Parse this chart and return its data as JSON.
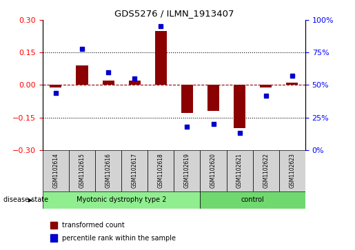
{
  "title": "GDS5276 / ILMN_1913407",
  "samples": [
    "GSM1102614",
    "GSM1102615",
    "GSM1102616",
    "GSM1102617",
    "GSM1102618",
    "GSM1102619",
    "GSM1102620",
    "GSM1102621",
    "GSM1102622",
    "GSM1102623"
  ],
  "transformed_count": [
    -0.01,
    0.09,
    0.02,
    0.02,
    0.25,
    -0.13,
    -0.12,
    -0.2,
    -0.01,
    0.01
  ],
  "percentile_rank": [
    44,
    78,
    60,
    55,
    95,
    18,
    20,
    13,
    42,
    57
  ],
  "group_info": [
    {
      "label": "Myotonic dystrophy type 2",
      "start": 0,
      "end": 5,
      "color": "#90EE90"
    },
    {
      "label": "control",
      "start": 6,
      "end": 9,
      "color": "#6FD96F"
    }
  ],
  "bar_color": "#8B0000",
  "dot_color": "#0000CD",
  "ylim_left": [
    -0.3,
    0.3
  ],
  "ylim_right": [
    0,
    100
  ],
  "yticks_left": [
    -0.3,
    -0.15,
    0.0,
    0.15,
    0.3
  ],
  "yticks_right": [
    0,
    25,
    50,
    75,
    100
  ],
  "dotted_lines": [
    -0.15,
    0.15
  ],
  "legend_transformed": "transformed count",
  "legend_percentile": "percentile rank within the sample",
  "disease_state_label": "disease state"
}
